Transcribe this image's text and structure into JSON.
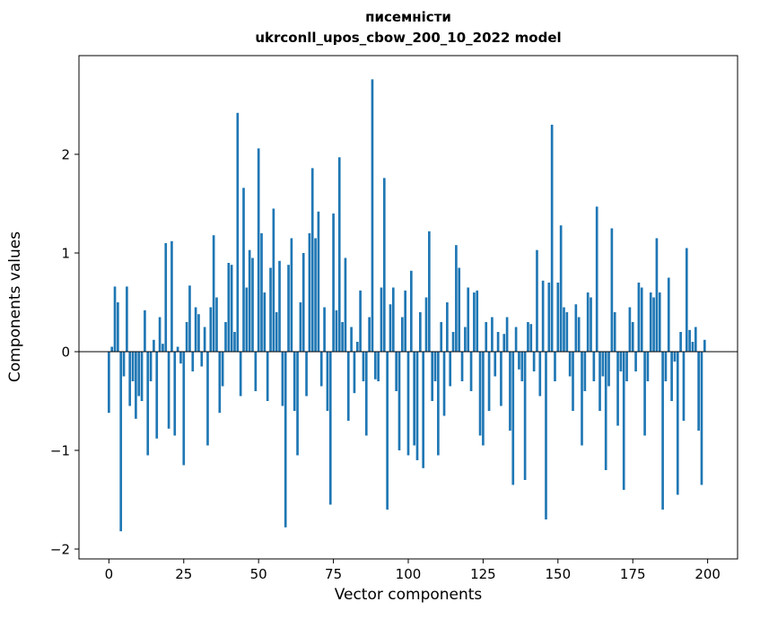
{
  "chart_data": {
    "type": "bar",
    "title_line1": "писемністи",
    "title_line2": "ukrconll_upos_cbow_200_10_2022 model",
    "xlabel": "Vector components",
    "ylabel": "Components values",
    "bar_color": "#1f77b4",
    "axis_color": "#000000",
    "background": "#ffffff",
    "xlim": [
      -10,
      210
    ],
    "ylim": [
      -2.1,
      3.0
    ],
    "xticks": [
      0,
      25,
      50,
      75,
      100,
      125,
      150,
      175,
      200
    ],
    "yticks": [
      -2,
      -1,
      0,
      1,
      2
    ],
    "bar_unit_width": 0.8,
    "values": [
      -0.62,
      0.05,
      0.66,
      0.5,
      -1.82,
      -0.25,
      0.66,
      -0.55,
      -0.3,
      -0.68,
      -0.45,
      -0.5,
      0.42,
      -1.05,
      -0.3,
      0.12,
      -0.88,
      0.35,
      0.08,
      1.1,
      -0.78,
      1.12,
      -0.85,
      0.05,
      -0.12,
      -1.15,
      0.3,
      0.67,
      -0.2,
      0.45,
      0.38,
      -0.15,
      0.25,
      -0.95,
      0.45,
      1.18,
      0.55,
      -0.62,
      -0.35,
      0.3,
      0.9,
      0.88,
      0.2,
      2.42,
      -0.45,
      1.66,
      0.65,
      1.03,
      0.95,
      -0.4,
      2.06,
      1.2,
      0.6,
      -0.5,
      0.85,
      1.45,
      0.4,
      0.92,
      -0.55,
      -1.78,
      0.88,
      1.15,
      -0.6,
      -1.05,
      0.5,
      1.0,
      -0.45,
      1.2,
      1.86,
      1.15,
      1.42,
      -0.35,
      0.45,
      -0.6,
      -1.55,
      1.4,
      0.42,
      1.97,
      0.3,
      0.95,
      -0.7,
      0.25,
      -0.42,
      0.1,
      0.62,
      -0.3,
      -0.85,
      0.35,
      2.76,
      -0.28,
      -0.3,
      0.65,
      1.76,
      -1.6,
      0.48,
      0.65,
      -0.4,
      -1.0,
      0.35,
      0.62,
      -1.05,
      0.82,
      -0.95,
      -1.1,
      0.4,
      -1.18,
      0.55,
      1.22,
      -0.5,
      -0.3,
      -1.05,
      0.3,
      -0.65,
      0.5,
      -0.35,
      0.2,
      1.08,
      0.85,
      -0.3,
      0.25,
      0.65,
      -0.4,
      0.6,
      0.62,
      -0.85,
      -0.95,
      0.3,
      -0.6,
      0.35,
      -0.25,
      0.2,
      -0.55,
      0.18,
      0.35,
      -0.8,
      -1.35,
      0.25,
      -0.18,
      -0.3,
      -1.3,
      0.3,
      0.28,
      -0.2,
      1.03,
      -0.45,
      0.72,
      -1.7,
      0.7,
      2.3,
      -0.3,
      0.7,
      1.28,
      0.45,
      0.4,
      -0.25,
      -0.6,
      0.48,
      0.35,
      -0.95,
      -0.4,
      0.6,
      0.55,
      -0.3,
      1.47,
      -0.6,
      -0.25,
      -1.2,
      -0.35,
      1.25,
      0.4,
      -0.75,
      -0.2,
      -1.4,
      -0.3,
      0.45,
      0.3,
      -0.2,
      0.7,
      0.65,
      -0.85,
      -0.3,
      0.6,
      0.55,
      1.15,
      0.6,
      -1.6,
      -0.3,
      0.75,
      -0.5,
      -0.1,
      -1.45,
      0.2,
      -0.7,
      1.05,
      0.22,
      0.1,
      0.25,
      -0.8,
      -1.35,
      0.12
    ]
  }
}
